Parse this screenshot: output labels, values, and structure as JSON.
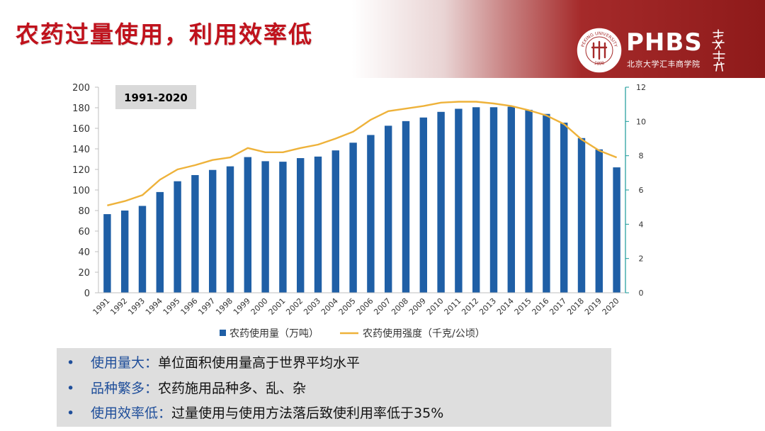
{
  "slide": {
    "title": "农药过量使用，利用效率低",
    "logo": {
      "brand": "PHBS",
      "subtitle": "北京大学汇丰商学院",
      "seal_text": "PEKING UNIVERSITY",
      "seal_year": "1898",
      "calligraphy": "商界學府"
    }
  },
  "chart_data": {
    "type": "bar",
    "annotation": "1991-2020",
    "categories": [
      "1991",
      "1992",
      "1993",
      "1994",
      "1995",
      "1996",
      "1997",
      "1998",
      "1999",
      "2000",
      "2001",
      "2002",
      "2003",
      "2004",
      "2005",
      "2006",
      "2007",
      "2008",
      "2009",
      "2010",
      "2011",
      "2012",
      "2013",
      "2014",
      "2015",
      "2016",
      "2017",
      "2018",
      "2019",
      "2020"
    ],
    "series": [
      {
        "name": "农药使用量（万吨）",
        "type": "bar",
        "axis": "left",
        "color": "#1f5fa6",
        "values": [
          76.5,
          80,
          84.5,
          98,
          108.5,
          114.5,
          119.5,
          123,
          132,
          128,
          127.5,
          131,
          132.5,
          138.5,
          146,
          153.5,
          162.5,
          167,
          170.5,
          176,
          179,
          180.5,
          180.5,
          181,
          178,
          174,
          165.5,
          150.5,
          139.5,
          122
        ]
      },
      {
        "name": "农药使用强度（千克/公顷）",
        "type": "line",
        "axis": "right",
        "color": "#eeb23a",
        "values": [
          5.1,
          5.35,
          5.7,
          6.6,
          7.2,
          7.45,
          7.75,
          7.9,
          8.45,
          8.2,
          8.2,
          8.45,
          8.65,
          9.0,
          9.4,
          10.1,
          10.6,
          10.75,
          10.9,
          11.1,
          11.15,
          11.15,
          11.05,
          10.9,
          10.65,
          10.35,
          9.85,
          8.95,
          8.3,
          7.9
        ]
      }
    ],
    "left_axis": {
      "ylim": [
        0,
        200
      ],
      "ticks": [
        "0",
        "20",
        "40",
        "60",
        "80",
        "100",
        "120",
        "140",
        "160",
        "180",
        "200"
      ]
    },
    "right_axis": {
      "ylim": [
        0,
        12
      ],
      "ticks": [
        "0",
        "2",
        "4",
        "6",
        "8",
        "10",
        "12"
      ]
    },
    "legend_position": "bottom"
  },
  "bullets": [
    {
      "marker": "•",
      "head": "使用量大：",
      "body": "单位面积使用量高于世界平均水平"
    },
    {
      "marker": "•",
      "head": "品种繁多：",
      "body": "农药施用品种多、乱、杂"
    },
    {
      "marker": "•",
      "head": "使用效率低：",
      "body": "过量使用与使用方法落后致使利用率低于35%"
    }
  ]
}
